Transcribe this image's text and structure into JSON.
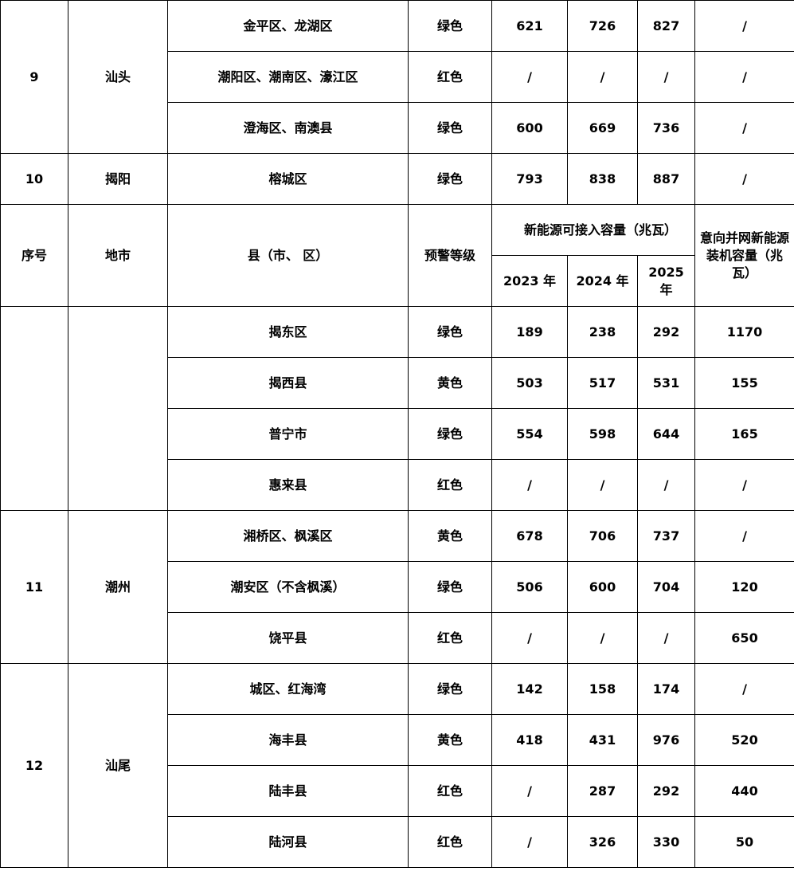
{
  "header": {
    "index": "序号",
    "city": "地市",
    "county": "县（市、 区）",
    "warning": "预警等级",
    "capacity_group": "新能源可接入容量（兆瓦）",
    "y2023": "2023 年",
    "y2024": "2024 年",
    "y2025": "2025 年",
    "intended": "意向并网新能源装机容量（兆瓦）"
  },
  "groups_before_header": [
    {
      "index": "9",
      "city": "汕头",
      "rows": [
        {
          "county": "金平区、龙湖区",
          "warning": "绿色",
          "y2023": "621",
          "y2024": "726",
          "y2025": "827",
          "intended": "/"
        },
        {
          "county": "潮阳区、潮南区、濠江区",
          "warning": "红色",
          "y2023": "/",
          "y2024": "/",
          "y2025": "/",
          "intended": "/"
        },
        {
          "county": "澄海区、南澳县",
          "warning": "绿色",
          "y2023": "600",
          "y2024": "669",
          "y2025": "736",
          "intended": "/"
        }
      ]
    },
    {
      "index": "10",
      "city": "揭阳",
      "rows": [
        {
          "county": "榕城区",
          "warning": "绿色",
          "y2023": "793",
          "y2024": "838",
          "y2025": "887",
          "intended": "/"
        }
      ]
    }
  ],
  "groups_after_header": [
    {
      "index": "",
      "city": "",
      "rows": [
        {
          "county": "揭东区",
          "warning": "绿色",
          "y2023": "189",
          "y2024": "238",
          "y2025": "292",
          "intended": "1170"
        },
        {
          "county": "揭西县",
          "warning": "黄色",
          "y2023": "503",
          "y2024": "517",
          "y2025": "531",
          "intended": "155"
        },
        {
          "county": "普宁市",
          "warning": "绿色",
          "y2023": "554",
          "y2024": "598",
          "y2025": "644",
          "intended": "165"
        },
        {
          "county": "惠来县",
          "warning": "红色",
          "y2023": "/",
          "y2024": "/",
          "y2025": "/",
          "intended": "/"
        }
      ]
    },
    {
      "index": "11",
      "city": "潮州",
      "rows": [
        {
          "county": "湘桥区、枫溪区",
          "warning": "黄色",
          "y2023": "678",
          "y2024": "706",
          "y2025": "737",
          "intended": "/"
        },
        {
          "county": "潮安区（不含枫溪）",
          "warning": "绿色",
          "y2023": "506",
          "y2024": "600",
          "y2025": "704",
          "intended": "120"
        },
        {
          "county": "饶平县",
          "warning": "红色",
          "y2023": "/",
          "y2024": "/",
          "y2025": "/",
          "intended": "650"
        }
      ]
    },
    {
      "index": "12",
      "city": "汕尾",
      "rows": [
        {
          "county": "城区、红海湾",
          "warning": "绿色",
          "y2023": "142",
          "y2024": "158",
          "y2025": "174",
          "intended": "/"
        },
        {
          "county": "海丰县",
          "warning": "黄色",
          "y2023": "418",
          "y2024": "431",
          "y2025": "976",
          "intended": "520"
        },
        {
          "county": "陆丰县",
          "warning": "红色",
          "y2023": "/",
          "y2024": "287",
          "y2025": "292",
          "intended": "440"
        },
        {
          "county": "陆河县",
          "warning": "红色",
          "y2023": "/",
          "y2024": "326",
          "y2025": "330",
          "intended": "50"
        }
      ]
    }
  ]
}
